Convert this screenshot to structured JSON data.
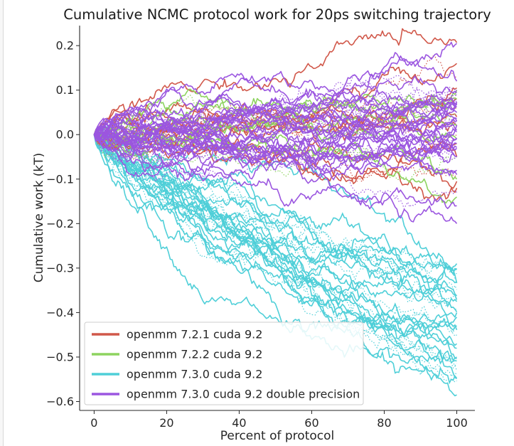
{
  "chart_data": {
    "type": "line",
    "title": "Cumulative NCMC protocol work for 20ps switching trajectory",
    "xlabel": "Percent of protocol",
    "ylabel": "Cumulative work (kT)",
    "xlim": [
      -4,
      105
    ],
    "ylim": [
      -0.62,
      0.245
    ],
    "xticks": [
      0,
      20,
      40,
      60,
      80,
      100
    ],
    "yticks": [
      -0.6,
      -0.5,
      -0.4,
      -0.3,
      -0.2,
      -0.1,
      0.0,
      0.1,
      0.2
    ],
    "ytick_labels": [
      "−0.6",
      "−0.5",
      "−0.4",
      "−0.3",
      "−0.2",
      "−0.1",
      "0.0",
      "0.1",
      "0.2"
    ],
    "xtick_labels": [
      "0",
      "20",
      "40",
      "60",
      "80",
      "100"
    ],
    "grid": false,
    "legend_position": "bottom-left",
    "series": [
      {
        "name": "openmm 7.2.1 cuda 9.2",
        "color": "#d1584a",
        "final_values": [
          0.207,
          0.16,
          0.13,
          0.105,
          0.08,
          0.06,
          0.04,
          0.02,
          0.0,
          -0.02,
          -0.05,
          -0.09,
          -0.105,
          -0.12
        ],
        "x": [
          0,
          10,
          20,
          30,
          40,
          50,
          60,
          70,
          80,
          90,
          100
        ],
        "values": [
          0.0,
          0.08,
          0.12,
          0.14,
          0.16,
          0.17,
          0.18,
          0.18,
          0.19,
          0.2,
          0.207
        ]
      },
      {
        "name": "openmm 7.2.2 cuda 9.2",
        "color": "#8dd35f",
        "final_values": [
          0.1,
          0.08,
          0.05,
          0.02,
          -0.01,
          -0.05,
          -0.1,
          -0.14
        ],
        "x": [
          0,
          10,
          20,
          30,
          40,
          50,
          60,
          70,
          80,
          90,
          100
        ],
        "values": [
          0.0,
          0.03,
          0.05,
          0.07,
          0.08,
          0.09,
          0.09,
          0.1,
          0.1,
          0.1,
          0.1
        ]
      },
      {
        "name": "openmm 7.3.0 cuda 9.2",
        "color": "#4fcfd8",
        "final_values": [
          -0.29,
          -0.33,
          -0.37,
          -0.4,
          -0.43,
          -0.45,
          -0.47,
          -0.5,
          -0.53,
          -0.585
        ],
        "x": [
          0,
          10,
          20,
          30,
          40,
          50,
          60,
          70,
          80,
          90,
          100
        ],
        "values": [
          0.0,
          -0.05,
          -0.09,
          -0.14,
          -0.18,
          -0.23,
          -0.27,
          -0.32,
          -0.37,
          -0.42,
          -0.47
        ]
      },
      {
        "name": "openmm 7.3.0 cuda 9.2 double precision",
        "color": "#9b56e0",
        "final_values": [
          0.205,
          0.12,
          0.1,
          0.07,
          0.05,
          0.03,
          0.01,
          -0.01,
          -0.03,
          -0.05,
          -0.08,
          -0.13,
          -0.16,
          -0.2
        ],
        "x": [
          0,
          10,
          20,
          30,
          40,
          50,
          60,
          70,
          80,
          90,
          100
        ],
        "values": [
          0.0,
          0.01,
          0.02,
          0.03,
          0.03,
          0.04,
          0.04,
          0.04,
          0.05,
          0.05,
          0.05
        ]
      }
    ]
  }
}
